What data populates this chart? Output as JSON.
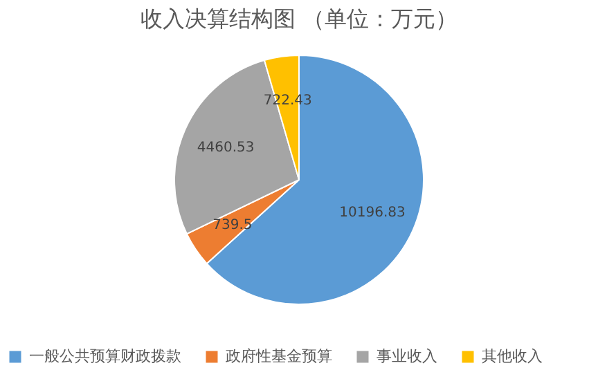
{
  "chart_data": {
    "type": "pie",
    "title": "收入决算结构图 （单位：万元）",
    "categories": [
      "一般公共预算财政拨款",
      "政府性基金预算",
      "事业收入",
      "其他收入"
    ],
    "values": [
      10196.83,
      739.5,
      4460.53,
      722.43
    ],
    "colors": [
      "#5b9bd5",
      "#ed7d31",
      "#a5a5a5",
      "#ffc000"
    ],
    "data_labels": true,
    "legend": "bottom"
  }
}
